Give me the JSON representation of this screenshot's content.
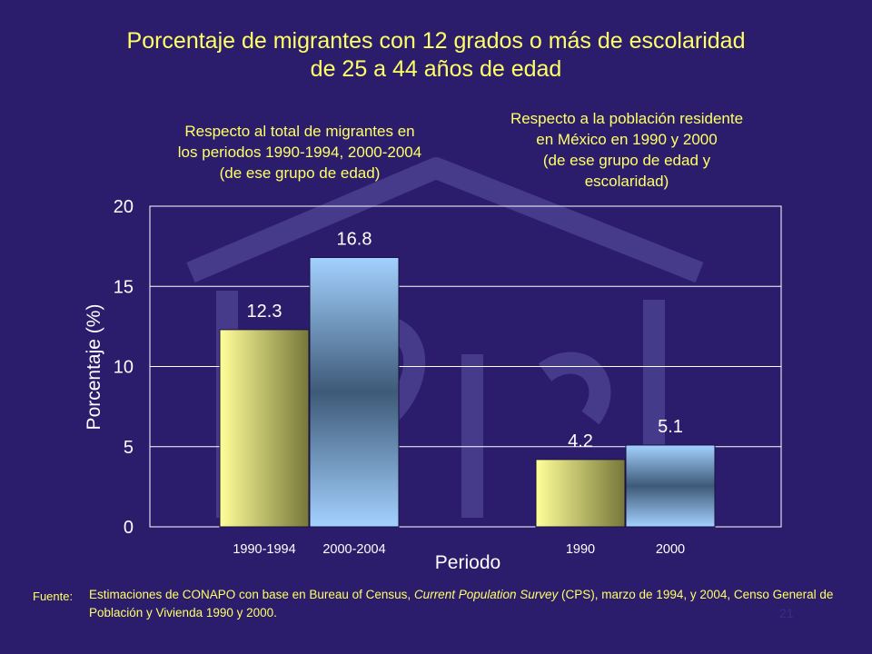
{
  "title": {
    "line1": "Porcentaje de migrantes con 12 grados o más de escolaridad",
    "line2": "de 25 a 44 años de edad"
  },
  "subtitles": {
    "left": {
      "line1": "Respecto al total de migrantes en",
      "line2": "los periodos 1990-1994, 2000-2004",
      "line3": "(de ese grupo de edad)"
    },
    "right": {
      "line1": "Respecto a la población residente",
      "line2": "en México en 1990 y 2000",
      "line3": "(de ese grupo de edad y",
      "line4": "escolaridad)"
    }
  },
  "chart_data": {
    "type": "bar",
    "categories": [
      "1990-1994",
      "2000-2004",
      "1990",
      "2000"
    ],
    "values": [
      12.3,
      16.8,
      4.2,
      5.1
    ],
    "data_labels": [
      "12.3",
      "16.8",
      "4.2",
      "5.1"
    ],
    "ylabel": "Porcentaje (%)",
    "xlabel": "Periodo",
    "ylim": [
      0,
      20
    ],
    "yticks": [
      0,
      5,
      10,
      15,
      20
    ],
    "grid": true,
    "colors": {
      "first_bar": [
        "#ffff99",
        "#7a7a3c"
      ],
      "second_bar": [
        "#99ccff",
        "#3d5a78"
      ],
      "axis": "#ffffff",
      "text": "#ffffff",
      "title_text": "#ffff66"
    }
  },
  "source": {
    "label": "Fuente:",
    "text_part1": "Estimaciones de CONAPO con base en Bureau of Census, ",
    "text_italic": "Current Population Survey",
    "text_part2": " (CPS),  marzo  de 1994, y 2004,  Censo General de Población y Vivienda 1990 y 2000."
  },
  "page_number": "21"
}
